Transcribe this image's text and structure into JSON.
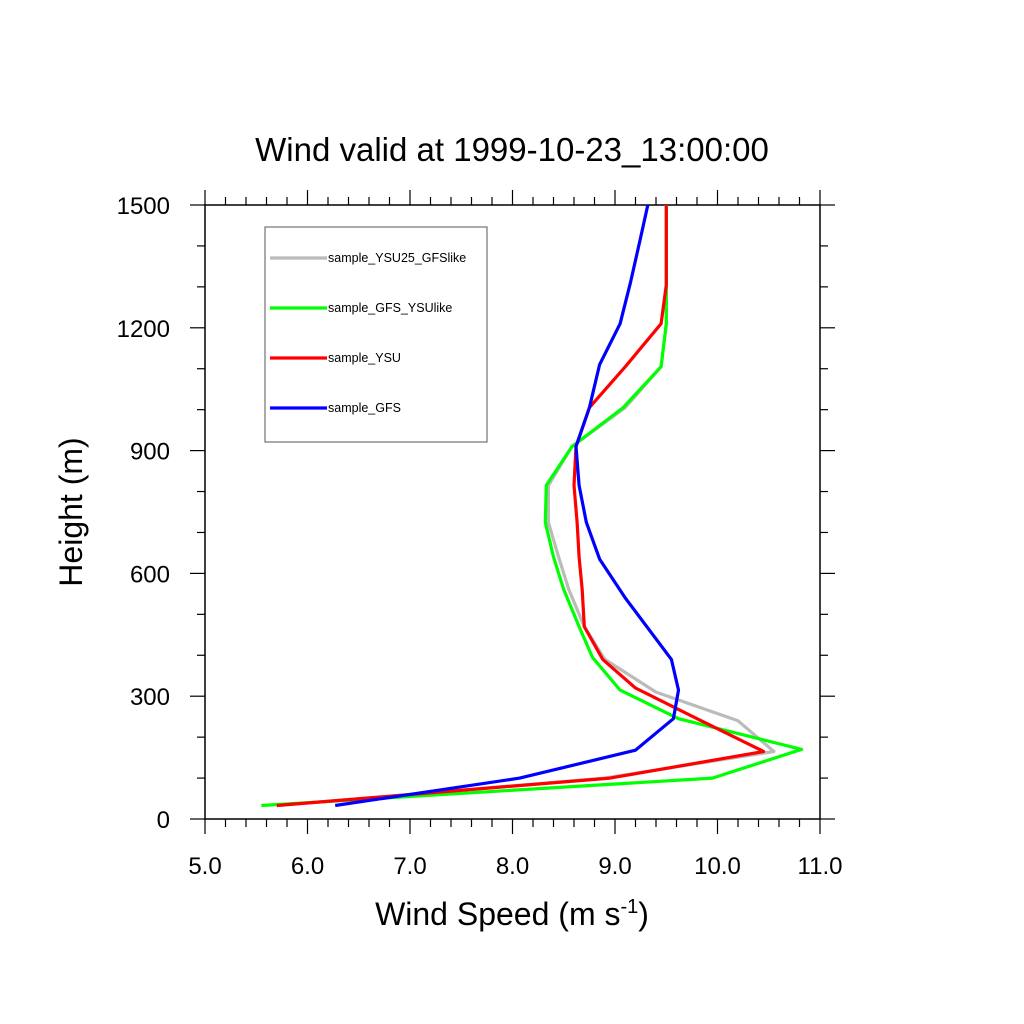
{
  "chart_data": {
    "type": "line",
    "title": "Wind valid at 1999-10-23_13:00:00",
    "xlabel": "Wind Speed (m s",
    "xlabel_sup": "-1",
    "xlabel_end": ")",
    "ylabel": "Height (m)",
    "xlim": [
      5.0,
      11.0
    ],
    "ylim": [
      0,
      1500
    ],
    "x_ticks": [
      5.0,
      6.0,
      7.0,
      8.0,
      9.0,
      10.0,
      11.0
    ],
    "x_tick_labels": [
      "5.0",
      "6.0",
      "7.0",
      "8.0",
      "9.0",
      "10.0",
      "11.0"
    ],
    "y_ticks": [
      0,
      300,
      600,
      900,
      1200,
      1500
    ],
    "y_tick_labels": [
      "0",
      "300",
      "600",
      "900",
      "1200",
      "1500"
    ],
    "grid": false,
    "legend_position": "top-left",
    "series": [
      {
        "name": "sample_YSU25_GFSlike",
        "color": "#bbbbbb",
        "points": [
          [
            5.7,
            33
          ],
          [
            8.9,
            100
          ],
          [
            10.55,
            165
          ],
          [
            10.2,
            240
          ],
          [
            9.4,
            310
          ],
          [
            8.9,
            390
          ],
          [
            8.7,
            470
          ],
          [
            8.55,
            560
          ],
          [
            8.45,
            640
          ],
          [
            8.35,
            725
          ],
          [
            8.35,
            815
          ],
          [
            8.58,
            910
          ],
          [
            9.1,
            1005
          ],
          [
            9.45,
            1105
          ],
          [
            9.5,
            1210
          ],
          [
            9.5,
            1305
          ],
          [
            9.5,
            1400
          ],
          [
            9.5,
            1500
          ]
        ]
      },
      {
        "name": "sample_GFS_YSUlike",
        "color": "#00ff00",
        "points": [
          [
            5.55,
            33
          ],
          [
            9.95,
            100
          ],
          [
            10.82,
            170
          ],
          [
            9.62,
            245
          ],
          [
            9.05,
            315
          ],
          [
            8.78,
            395
          ],
          [
            8.65,
            470
          ],
          [
            8.5,
            560
          ],
          [
            8.4,
            640
          ],
          [
            8.32,
            725
          ],
          [
            8.33,
            815
          ],
          [
            8.58,
            910
          ],
          [
            9.08,
            1005
          ],
          [
            9.45,
            1105
          ],
          [
            9.5,
            1210
          ],
          [
            9.5,
            1305
          ],
          [
            9.5,
            1400
          ],
          [
            9.5,
            1500
          ]
        ]
      },
      {
        "name": "sample_YSU",
        "color": "#ff0000",
        "points": [
          [
            5.7,
            33
          ],
          [
            8.95,
            100
          ],
          [
            10.45,
            165
          ],
          [
            9.8,
            245
          ],
          [
            9.2,
            320
          ],
          [
            8.88,
            390
          ],
          [
            8.7,
            470
          ],
          [
            8.68,
            560
          ],
          [
            8.65,
            640
          ],
          [
            8.63,
            725
          ],
          [
            8.6,
            815
          ],
          [
            8.62,
            910
          ],
          [
            8.75,
            1005
          ],
          [
            9.1,
            1105
          ],
          [
            9.45,
            1210
          ],
          [
            9.5,
            1305
          ],
          [
            9.5,
            1400
          ],
          [
            9.5,
            1500
          ]
        ]
      },
      {
        "name": "sample_GFS",
        "color": "#0000ff",
        "points": [
          [
            6.27,
            33
          ],
          [
            8.07,
            100
          ],
          [
            9.2,
            168
          ],
          [
            9.57,
            245
          ],
          [
            9.62,
            315
          ],
          [
            9.55,
            390
          ],
          [
            9.1,
            540
          ],
          [
            8.85,
            635
          ],
          [
            8.72,
            725
          ],
          [
            8.65,
            815
          ],
          [
            8.62,
            910
          ],
          [
            8.75,
            1005
          ],
          [
            8.85,
            1110
          ],
          [
            9.05,
            1210
          ],
          [
            9.15,
            1310
          ],
          [
            9.25,
            1420
          ],
          [
            9.32,
            1500
          ]
        ]
      }
    ]
  }
}
